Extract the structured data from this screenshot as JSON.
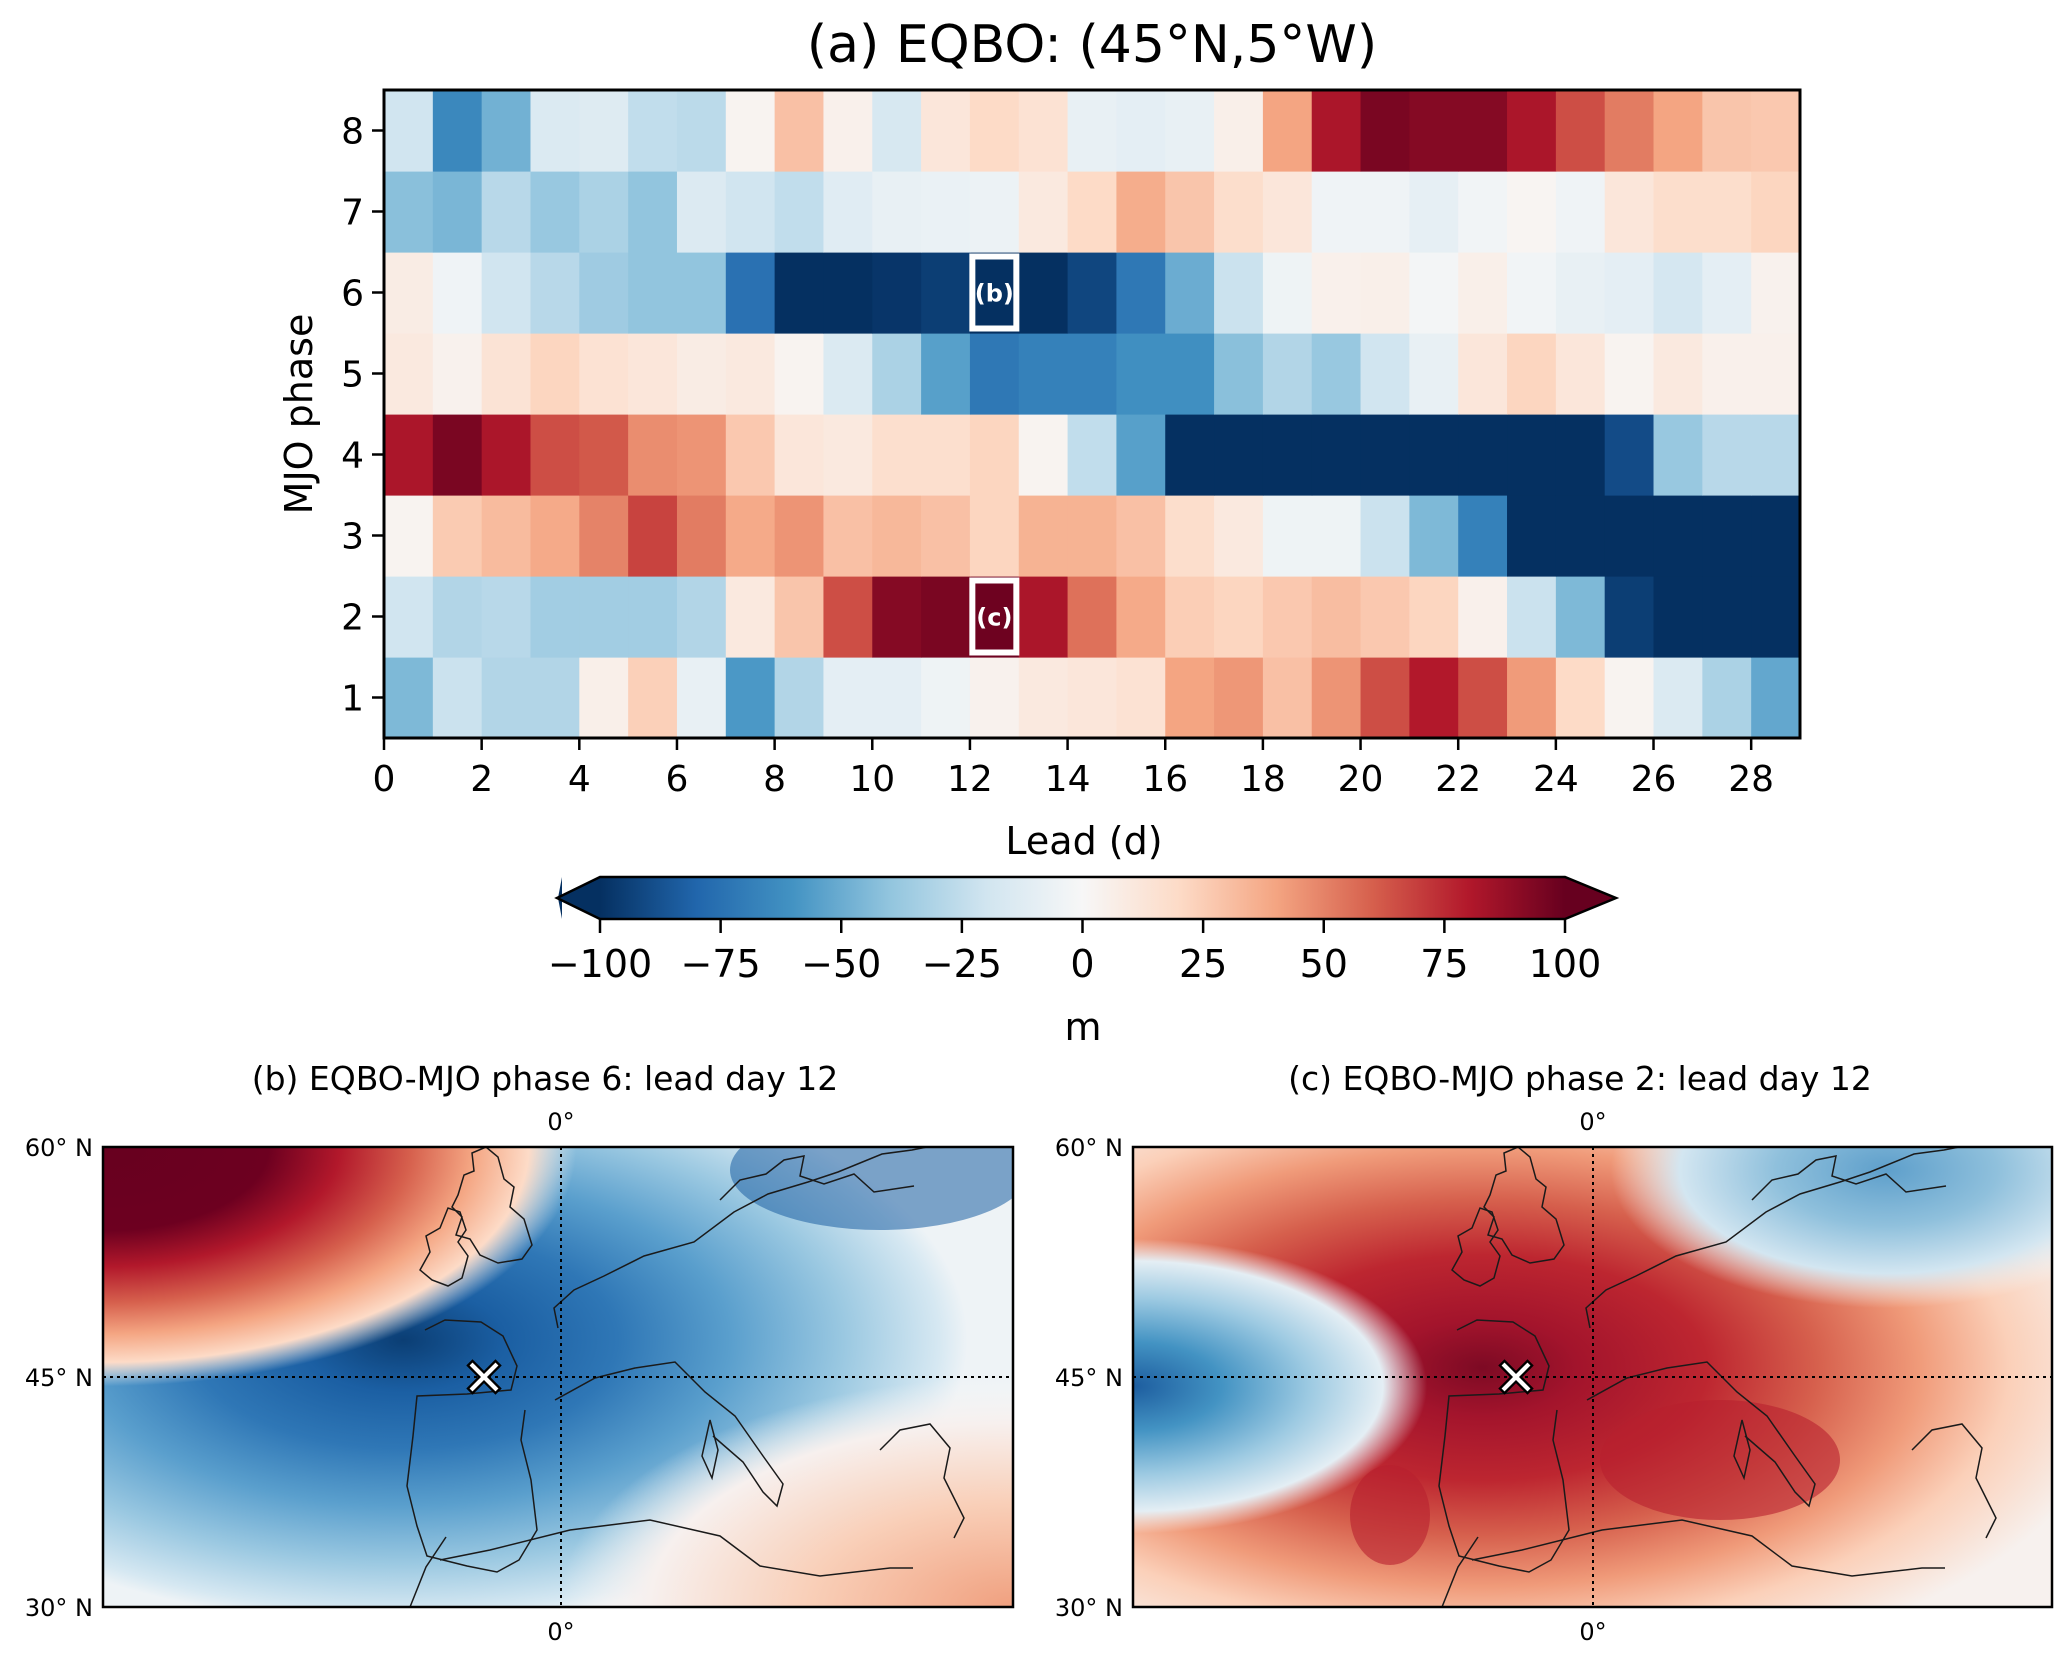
{
  "chart_data": [
    {
      "type": "heatmap",
      "title": "(a) EQBO: (45°N,5°W)",
      "xlabel": "Lead (d)",
      "ylabel": "MJO phase",
      "x": [
        0,
        1,
        2,
        3,
        4,
        5,
        6,
        7,
        8,
        9,
        10,
        11,
        12,
        13,
        14,
        15,
        16,
        17,
        18,
        19,
        20,
        21,
        22,
        23,
        24,
        25,
        26,
        27,
        28
      ],
      "xticks": [
        "0",
        "2",
        "4",
        "6",
        "8",
        "10",
        "12",
        "14",
        "16",
        "18",
        "20",
        "22",
        "24",
        "26",
        "28"
      ],
      "xtick_values": [
        0,
        2,
        4,
        6,
        8,
        10,
        12,
        14,
        16,
        18,
        20,
        22,
        24,
        26,
        28
      ],
      "y": [
        1,
        2,
        3,
        4,
        5,
        6,
        7,
        8
      ],
      "yticks": [
        "1",
        "2",
        "3",
        "4",
        "5",
        "6",
        "7",
        "8"
      ],
      "xlim": [
        0,
        29
      ],
      "ylim": [
        0.5,
        8.5
      ],
      "colormap": "RdBu_r",
      "vmin": -100,
      "vmax": 100,
      "values": {
        "8": [
          -20,
          -65,
          -48,
          -15,
          -13,
          -25,
          -27,
          3,
          30,
          5,
          -17,
          12,
          20,
          15,
          -8,
          -10,
          -8,
          6,
          40,
          82,
          95,
          92,
          92,
          82,
          65,
          52,
          40,
          28,
          27
        ],
        "7": [
          -42,
          -46,
          -28,
          -38,
          -32,
          -40,
          -14,
          -20,
          -25,
          -12,
          -8,
          -7,
          -6,
          10,
          20,
          37,
          28,
          18,
          12,
          -4,
          -4,
          -9,
          -3,
          2,
          -4,
          12,
          18,
          18,
          22
        ],
        "6": [
          8,
          -4,
          -20,
          -28,
          -36,
          -40,
          -40,
          -75,
          -110,
          -105,
          -98,
          -95,
          -100,
          -105,
          -92,
          -72,
          -50,
          -22,
          -5,
          5,
          6,
          -2,
          6,
          -3,
          -8,
          -10,
          -18,
          -10,
          4
        ],
        "5": [
          10,
          4,
          14,
          22,
          15,
          12,
          8,
          10,
          3,
          -15,
          -32,
          -55,
          -72,
          -68,
          -68,
          -62,
          -62,
          -42,
          -30,
          -38,
          -20,
          -8,
          12,
          22,
          12,
          3,
          10,
          5,
          5
        ],
        "4": [
          82,
          95,
          82,
          65,
          62,
          47,
          45,
          27,
          12,
          10,
          17,
          17,
          22,
          3,
          -25,
          -55,
          -110,
          -120,
          -120,
          -120,
          -120,
          -120,
          -120,
          -120,
          -115,
          -90,
          -38,
          -28,
          -28
        ],
        "3": [
          3,
          26,
          32,
          38,
          50,
          68,
          52,
          38,
          45,
          30,
          33,
          30,
          22,
          35,
          35,
          30,
          18,
          10,
          -5,
          -5,
          -22,
          -45,
          -68,
          -120,
          -120,
          -120,
          -120,
          -120,
          -120
        ],
        "2": [
          -20,
          -30,
          -28,
          -35,
          -35,
          -35,
          -30,
          10,
          28,
          65,
          92,
          95,
          98,
          82,
          55,
          38,
          25,
          22,
          27,
          31,
          27,
          22,
          5,
          -22,
          -45,
          -95,
          -120,
          -120,
          -120
        ],
        "1": [
          -45,
          -22,
          -30,
          -30,
          6,
          24,
          -8,
          -58,
          -30,
          -10,
          -10,
          -5,
          4,
          10,
          12,
          15,
          40,
          44,
          30,
          45,
          65,
          80,
          65,
          43,
          20,
          3,
          -15,
          -32,
          -52
        ]
      },
      "annotations": [
        {
          "label": "(b)",
          "lead": 12,
          "phase": 6
        },
        {
          "label": "(c)",
          "lead": 12,
          "phase": 2
        }
      ],
      "colorbar": {
        "ticks": [
          -100,
          -75,
          -50,
          -25,
          0,
          25,
          50,
          75,
          100
        ],
        "tick_labels": [
          "−100",
          "−75",
          "−50",
          "−25",
          "0",
          "25",
          "50",
          "75",
          "100"
        ],
        "label": "m",
        "extend": "both",
        "orientation": "horizontal"
      },
      "grid": false
    },
    {
      "type": "heatmap",
      "subtype": "contour-map",
      "title": "(b) EQBO-MJO phase 6: lead day 12",
      "lat_labels": [
        "60° N",
        "45° N",
        "30° N"
      ],
      "lon_labels_top": [
        "0°"
      ],
      "lon_labels_bottom": [
        "0°"
      ],
      "marker": {
        "symbol": "X",
        "lat": 45,
        "lon": -5
      },
      "gridlines": [
        "45° N",
        "0°"
      ],
      "description": "Negative anomaly centred over Bay of Biscay; positive anomaly in far north-west corner"
    },
    {
      "type": "heatmap",
      "subtype": "contour-map",
      "title": "(c) EQBO-MJO phase 2: lead day 12",
      "lat_labels": [
        "60° N",
        "45° N",
        "30° N"
      ],
      "lon_labels_top": [
        "0°"
      ],
      "lon_labels_bottom": [
        "0°"
      ],
      "marker": {
        "symbol": "X",
        "lat": 45,
        "lon": -5
      },
      "gridlines": [
        "45° N",
        "0°"
      ],
      "description": "Positive anomaly centred over Bay of Biscay/western Europe; negative anomaly on western edge and over Scandinavia"
    }
  ]
}
